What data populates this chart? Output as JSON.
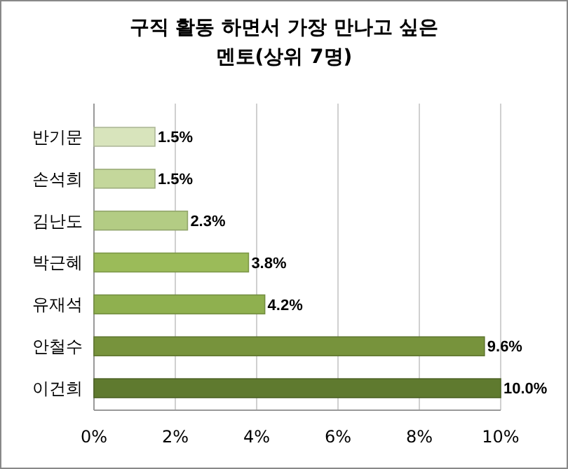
{
  "chart_data": {
    "type": "bar",
    "orientation": "horizontal",
    "title": "구직 활동 하면서 가장 만나고 싶은\n멘토(상위 7명)",
    "categories": [
      "반기문",
      "손석희",
      "김난도",
      "박근혜",
      "유재석",
      "안철수",
      "이건희"
    ],
    "values": [
      1.5,
      1.5,
      2.3,
      3.8,
      4.2,
      9.6,
      10.0
    ],
    "colors": [
      "#d8e4bc",
      "#c4d79b",
      "#b3cc84",
      "#9bbb59",
      "#8fb04f",
      "#77933c",
      "#5f7a2f"
    ],
    "value_labels": [
      "1.5%",
      "1.5%",
      "2.3%",
      "3.8%",
      "4.2%",
      "9.6%",
      "10.0%"
    ],
    "xlim": [
      0,
      10
    ],
    "xticks": [
      {
        "value": 0,
        "label": "0%"
      },
      {
        "value": 2,
        "label": "2%"
      },
      {
        "value": 4,
        "label": "4%"
      },
      {
        "value": 6,
        "label": "6%"
      },
      {
        "value": 8,
        "label": "8%"
      },
      {
        "value": 10,
        "label": "10%"
      }
    ],
    "grid": "x"
  }
}
